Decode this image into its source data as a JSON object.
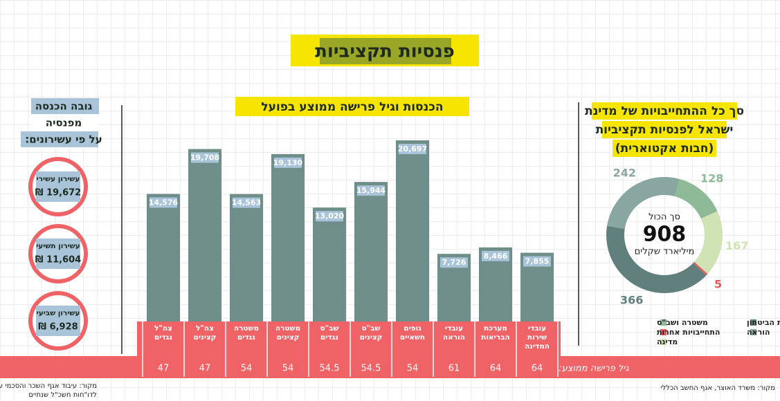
{
  "title": "פנסיות תקציביות",
  "chart_data": [
    {
      "type": "pie",
      "title_lines": [
        "סך כל ההתחייבויות של מדינת",
        "ישראל לפנסיות תקציביות",
        "(חבות אקטוארית)"
      ],
      "center_label": "סך הכול",
      "total": 908,
      "unit": "מיליארד שקלים",
      "categories": [
        "משטרה ושב\"ס",
        "מדינה",
        "התחייבויות אחרות",
        "מערכת הביטחון",
        "הוראה"
      ],
      "values": [
        128,
        167,
        5,
        366,
        242
      ],
      "colors": [
        "#8fba98",
        "#cfe3b4",
        "#e85a5a",
        "#617f7c",
        "#8aa6a0"
      ]
    },
    {
      "type": "bar",
      "title": "הכנסות וגיל פרישה ממוצע בפועל",
      "categories": [
        "עובדי שירות המדינה",
        "מערכת הבריאות",
        "עובדי הוראה",
        "גופים חשאיים",
        "שב\"ס קצינים",
        "שב\"ס נגדים",
        "משטרה קצינים",
        "משטרה נגדים",
        "צה\"ל קצינים",
        "צה\"ל נגדים"
      ],
      "values": [
        7855,
        8466,
        7726,
        20697,
        15944,
        13020,
        19130,
        14563,
        19708,
        14576
      ],
      "value_labels": [
        "7,855",
        "8,466",
        "7,726",
        "20,697",
        "15,944",
        "13,020",
        "19,130",
        "14,563",
        "19,708",
        "14,576"
      ],
      "color": "#6f8d89",
      "age_label": "גיל פרישה ממוצע:",
      "ages": [
        64,
        64,
        61,
        54,
        54.5,
        54.5,
        54,
        54,
        47,
        47
      ]
    }
  ],
  "deciles": {
    "title_lines": [
      "גובה הכנסה",
      "מפנסיה",
      "על פי עשירונים:"
    ],
    "items": [
      {
        "label": "עשירון עשירי",
        "amount": "19,672 ₪"
      },
      {
        "label": "עשירון תשיעי",
        "amount": "11,604 ₪"
      },
      {
        "label": "עשירון שביעי",
        "amount": "6,928 ₪"
      }
    ]
  },
  "sources": {
    "right": "מקור: משרד האוצר, אגף החשב הכללי",
    "left_lines": [
      "מקור: עיבוד אגף השכר והסכמי עבודה",
      "לדו\"חות חשכ\"ל שנתיים"
    ]
  }
}
